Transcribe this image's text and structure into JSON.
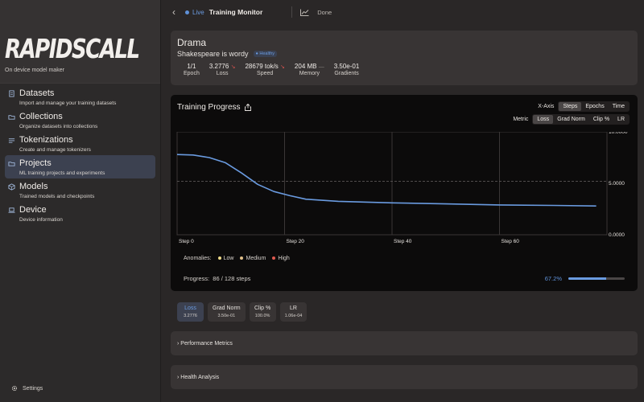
{
  "sidebar": {
    "logo": "RAPIDSCALL",
    "tagline": "On device model maker",
    "items": [
      {
        "label": "Datasets",
        "sub": "Import and manage your training datasets"
      },
      {
        "label": "Collections",
        "sub": "Organize datasets into collections"
      },
      {
        "label": "Tokenizations",
        "sub": "Create and manage tokenizers"
      },
      {
        "label": "Projects",
        "sub": "ML training projects and experiments"
      },
      {
        "label": "Models",
        "sub": "Trained models and checkpoints"
      },
      {
        "label": "Device",
        "sub": "Device information"
      }
    ],
    "settings": "Settings"
  },
  "header": {
    "live": "Live",
    "title": "Training Monitor",
    "done": "Done"
  },
  "info": {
    "title": "Drama",
    "subtitle": "Shakespeare is wordy",
    "badge": "Healthy",
    "stats": [
      {
        "value": "1/1",
        "label": "Epoch"
      },
      {
        "value": "3.2776",
        "label": "Loss"
      },
      {
        "value": "28679 tok/s",
        "label": "Speed"
      },
      {
        "value": "204 MB",
        "label": "Memory"
      },
      {
        "value": "3.50e-01",
        "label": "Gradients"
      }
    ]
  },
  "chart": {
    "title": "Training Progress",
    "xaxis_label": "X-Axis",
    "xaxis_options": [
      "Steps",
      "Epochs",
      "Time"
    ],
    "metric_label": "Metric",
    "metric_options": [
      "Loss",
      "Grad Norm",
      "Clip %",
      "LR"
    ],
    "anomalies_label": "Anomalies:",
    "anomalies": [
      {
        "label": "Low",
        "color": "#f0dc8a"
      },
      {
        "label": "Medium",
        "color": "#e0c08a"
      },
      {
        "label": "High",
        "color": "#e05a4f"
      }
    ],
    "progress_label": "Progress:",
    "progress_text": "86 / 128 steps",
    "progress_pct": "67.2%",
    "progress_fraction": 0.672,
    "accent": "#6a9be0"
  },
  "chart_data": {
    "type": "line",
    "title": "Training Progress",
    "xlim": [
      0,
      80
    ],
    "ylim": [
      0,
      10
    ],
    "x_ticks": [
      "Step 0",
      "Step 20",
      "Step 40",
      "Step 60"
    ],
    "y_ticks": [
      "10.0000",
      "5.0000",
      "0.0000"
    ],
    "reference_line": 5.2,
    "series": [
      {
        "name": "Loss",
        "x": [
          0,
          3,
          6,
          9,
          12,
          15,
          18,
          21,
          24,
          30,
          40,
          50,
          60,
          70,
          78
        ],
        "y": [
          7.8,
          7.75,
          7.5,
          7.0,
          6.0,
          4.9,
          4.2,
          3.8,
          3.45,
          3.25,
          3.1,
          3.0,
          2.9,
          2.85,
          2.8
        ]
      }
    ]
  },
  "metric_chips": [
    {
      "label": "Loss",
      "value": "3.2776"
    },
    {
      "label": "Grad Norm",
      "value": "3.50e-01"
    },
    {
      "label": "Clip %",
      "value": "100.0%"
    },
    {
      "label": "LR",
      "value": "1.06e-04"
    }
  ],
  "sections": [
    "Performance Metrics",
    "Health Analysis"
  ]
}
